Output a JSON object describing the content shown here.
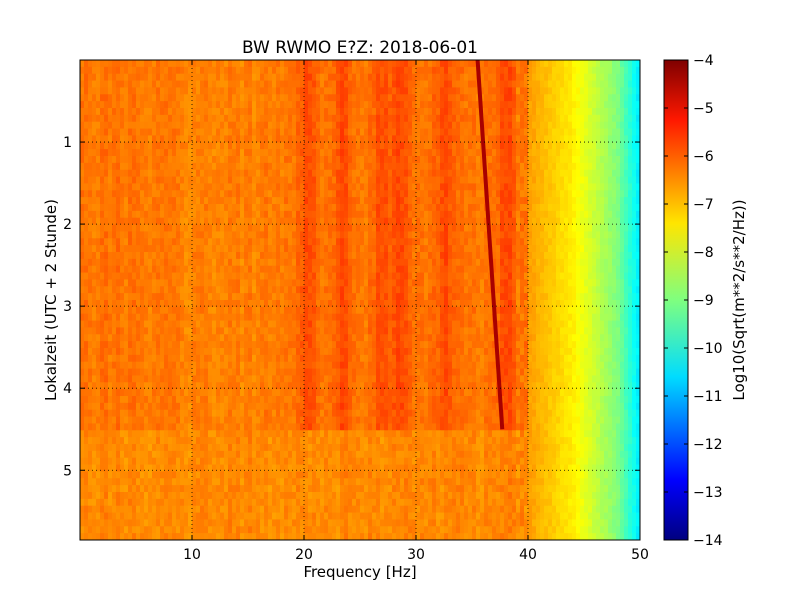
{
  "chart_data": {
    "type": "heatmap",
    "title": "BW RWMO E?Z: 2018-06-01",
    "xlabel": "Frequency [Hz]",
    "ylabel": "Lokalzeit (UTC + 2 Stunde)",
    "xlim": [
      0,
      50
    ],
    "ylim": [
      5.85,
      0
    ],
    "x_ticks": [
      10,
      20,
      30,
      40,
      50
    ],
    "y_ticks": [
      1,
      2,
      3,
      4,
      5
    ],
    "x_tick_labels": [
      "10",
      "20",
      "30",
      "40",
      "50"
    ],
    "y_tick_labels": [
      "1",
      "2",
      "3",
      "4",
      "5"
    ],
    "grid": true,
    "colormap": "jet",
    "colorbar": {
      "label": "Log10(Sqrt(m**2/s**2/Hz))",
      "range": [
        -14,
        -4
      ],
      "ticks": [
        -4,
        -5,
        -6,
        -7,
        -8,
        -9,
        -10,
        -11,
        -12,
        -13,
        -14
      ],
      "tick_labels": [
        "−4",
        "−5",
        "−6",
        "−7",
        "−8",
        "−9",
        "−10",
        "−11",
        "−12",
        "−13",
        "−14"
      ]
    },
    "features": {
      "background_level": -6.4,
      "level_change_time": 4.5,
      "lower_segment_level": -6.6,
      "rolloff": [
        [
          40,
          -6.8
        ],
        [
          44,
          -7.6
        ],
        [
          46,
          -8.3
        ],
        [
          48,
          -9.0
        ],
        [
          50,
          -10.5
        ]
      ],
      "drifting_line": {
        "level": -4.4,
        "start": [
          35.5,
          0
        ],
        "end": [
          37.7,
          4.5
        ]
      },
      "strong_bands_hz": [
        20.4,
        23.3,
        27.0,
        28.6,
        32.5,
        38.1,
        40.6
      ]
    }
  }
}
